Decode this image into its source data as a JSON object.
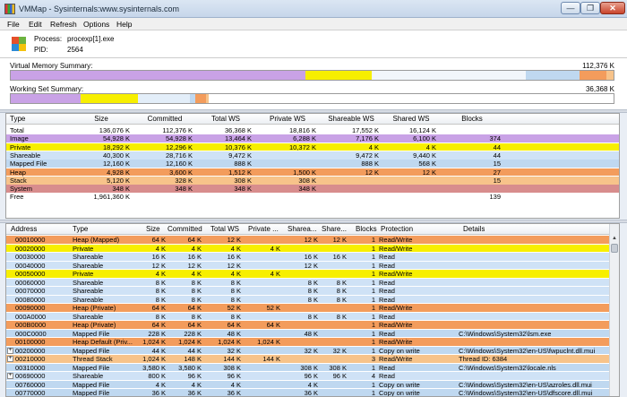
{
  "window": {
    "title": "VMMap - Sysinternals:www.sysinternals.com",
    "min": "—",
    "max": "❐",
    "close": "✕"
  },
  "menu": [
    "File",
    "Edit",
    "Refresh",
    "Options",
    "Help"
  ],
  "process": {
    "process_label": "Process:",
    "process_value": "procexp[1].exe",
    "pid_label": "PID:",
    "pid_value": "2564"
  },
  "summary": {
    "virtual_label": "Virtual Memory Summary:",
    "virtual_value": "112,376 K",
    "working_label": "Working Set Summary:",
    "working_value": "36,368 K"
  },
  "colors": {
    "image": "#c9a2e6",
    "private": "#f7ef00",
    "shareable": "#cfe2f6",
    "mapped": "#bfd8f0",
    "heap": "#f39c5c",
    "stack": "#f7c38a",
    "system": "#d88d8d",
    "free": "#ffffff"
  },
  "type_table": {
    "headers": [
      "Type",
      "Size",
      "Committed",
      "Total WS",
      "Private WS",
      "Shareable WS",
      "Shared WS",
      "Blocks"
    ],
    "rows": [
      {
        "type": "Total",
        "c": [
          "136,076 K",
          "112,376 K",
          "36,368 K",
          "18,816 K",
          "17,552 K",
          "16,124 K",
          ""
        ],
        "color": "#ffffff"
      },
      {
        "type": "Image",
        "c": [
          "54,928 K",
          "54,928 K",
          "13,464 K",
          "6,288 K",
          "7,176 K",
          "6,100 K",
          "374"
        ],
        "color": "#c9a2e6"
      },
      {
        "type": "Private",
        "c": [
          "18,292 K",
          "12,296 K",
          "10,376 K",
          "10,372 K",
          "4 K",
          "4 K",
          "44"
        ],
        "color": "#f7ef00"
      },
      {
        "type": "Shareable",
        "c": [
          "40,300 K",
          "28,716 K",
          "9,472 K",
          "",
          "9,472 K",
          "9,440 K",
          "44"
        ],
        "color": "#cfe2f6"
      },
      {
        "type": "Mapped File",
        "c": [
          "12,160 K",
          "12,160 K",
          "888 K",
          "",
          "888 K",
          "568 K",
          "15"
        ],
        "color": "#bfd8f0"
      },
      {
        "type": "Heap",
        "c": [
          "4,928 K",
          "3,600 K",
          "1,512 K",
          "1,500 K",
          "12 K",
          "12 K",
          "27"
        ],
        "color": "#f39c5c"
      },
      {
        "type": "Stack",
        "c": [
          "5,120 K",
          "328 K",
          "308 K",
          "308 K",
          "",
          "",
          "15"
        ],
        "color": "#f7c38a"
      },
      {
        "type": "System",
        "c": [
          "348 K",
          "348 K",
          "348 K",
          "348 K",
          "",
          "",
          ""
        ],
        "color": "#d88d8d"
      },
      {
        "type": "Free",
        "c": [
          "1,961,360 K",
          "",
          "",
          "",
          "",
          "",
          "139"
        ],
        "color": "#ffffff"
      }
    ]
  },
  "detail_table": {
    "headers": [
      "Address",
      "Type",
      "Size",
      "Committed",
      "Total WS",
      "Private ...",
      "Sharea...",
      "Share...",
      "Blocks",
      "Protection",
      "Details"
    ],
    "rows": [
      {
        "e": "",
        "a": "00010000",
        "t": "Heap (Mapped)",
        "s": "64 K",
        "c": "64 K",
        "tw": "12 K",
        "pw": "",
        "sw": "12 K",
        "sh": "12 K",
        "b": "1",
        "p": "Read/Write",
        "d": "",
        "color": "#f39c5c"
      },
      {
        "e": "",
        "a": "00020000",
        "t": "Private",
        "s": "4 K",
        "c": "4 K",
        "tw": "4 K",
        "pw": "4 K",
        "sw": "",
        "sh": "",
        "b": "1",
        "p": "Read/Write",
        "d": "",
        "color": "#f7ef00"
      },
      {
        "e": "",
        "a": "00030000",
        "t": "Shareable",
        "s": "16 K",
        "c": "16 K",
        "tw": "16 K",
        "pw": "",
        "sw": "16 K",
        "sh": "16 K",
        "b": "1",
        "p": "Read",
        "d": "",
        "color": "#cfe2f6"
      },
      {
        "e": "",
        "a": "00040000",
        "t": "Shareable",
        "s": "12 K",
        "c": "12 K",
        "tw": "12 K",
        "pw": "",
        "sw": "12 K",
        "sh": "",
        "b": "1",
        "p": "Read",
        "d": "",
        "color": "#cfe2f6"
      },
      {
        "e": "",
        "a": "00050000",
        "t": "Private",
        "s": "4 K",
        "c": "4 K",
        "tw": "4 K",
        "pw": "4 K",
        "sw": "",
        "sh": "",
        "b": "1",
        "p": "Read/Write",
        "d": "",
        "color": "#f7ef00"
      },
      {
        "e": "",
        "a": "00060000",
        "t": "Shareable",
        "s": "8 K",
        "c": "8 K",
        "tw": "8 K",
        "pw": "",
        "sw": "8 K",
        "sh": "8 K",
        "b": "1",
        "p": "Read",
        "d": "",
        "color": "#cfe2f6"
      },
      {
        "e": "",
        "a": "00070000",
        "t": "Shareable",
        "s": "8 K",
        "c": "8 K",
        "tw": "8 K",
        "pw": "",
        "sw": "8 K",
        "sh": "8 K",
        "b": "1",
        "p": "Read",
        "d": "",
        "color": "#cfe2f6"
      },
      {
        "e": "",
        "a": "00080000",
        "t": "Shareable",
        "s": "8 K",
        "c": "8 K",
        "tw": "8 K",
        "pw": "",
        "sw": "8 K",
        "sh": "8 K",
        "b": "1",
        "p": "Read",
        "d": "",
        "color": "#cfe2f6"
      },
      {
        "e": "",
        "a": "00090000",
        "t": "Heap (Private)",
        "s": "64 K",
        "c": "64 K",
        "tw": "52 K",
        "pw": "52 K",
        "sw": "",
        "sh": "",
        "b": "1",
        "p": "Read/Write",
        "d": "",
        "color": "#f39c5c"
      },
      {
        "e": "",
        "a": "000A0000",
        "t": "Shareable",
        "s": "8 K",
        "c": "8 K",
        "tw": "8 K",
        "pw": "",
        "sw": "8 K",
        "sh": "8 K",
        "b": "1",
        "p": "Read",
        "d": "",
        "color": "#cfe2f6"
      },
      {
        "e": "",
        "a": "000B0000",
        "t": "Heap (Private)",
        "s": "64 K",
        "c": "64 K",
        "tw": "64 K",
        "pw": "64 K",
        "sw": "",
        "sh": "",
        "b": "1",
        "p": "Read/Write",
        "d": "",
        "color": "#f39c5c"
      },
      {
        "e": "",
        "a": "000C0000",
        "t": "Mapped File",
        "s": "228 K",
        "c": "228 K",
        "tw": "48 K",
        "pw": "",
        "sw": "48 K",
        "sh": "",
        "b": "1",
        "p": "Read",
        "d": "C:\\Windows\\System32\\lsm.exe",
        "color": "#bfd8f0"
      },
      {
        "e": "",
        "a": "00100000",
        "t": "Heap Default (Priv...",
        "s": "1,024 K",
        "c": "1,024 K",
        "tw": "1,024 K",
        "pw": "1,024 K",
        "sw": "",
        "sh": "",
        "b": "1",
        "p": "Read/Write",
        "d": "",
        "color": "#f39c5c"
      },
      {
        "e": "+",
        "a": "00200000",
        "t": "Mapped File",
        "s": "44 K",
        "c": "44 K",
        "tw": "32 K",
        "pw": "",
        "sw": "32 K",
        "sh": "32 K",
        "b": "1",
        "p": "Copy on write",
        "d": "C:\\Windows\\System32\\en-US\\fwpuclnt.dll.mui",
        "color": "#bfd8f0"
      },
      {
        "e": "+",
        "a": "00210000",
        "t": "Thread Stack",
        "s": "1,024 K",
        "c": "148 K",
        "tw": "144 K",
        "pw": "144 K",
        "sw": "",
        "sh": "",
        "b": "3",
        "p": "Read/Write",
        "d": "Thread ID: 6384",
        "color": "#f7c38a"
      },
      {
        "e": "",
        "a": "00310000",
        "t": "Mapped File",
        "s": "3,580 K",
        "c": "3,580 K",
        "tw": "308 K",
        "pw": "",
        "sw": "308 K",
        "sh": "308 K",
        "b": "1",
        "p": "Read",
        "d": "C:\\Windows\\System32\\locale.nls",
        "color": "#bfd8f0"
      },
      {
        "e": "+",
        "a": "00690000",
        "t": "Shareable",
        "s": "800 K",
        "c": "96 K",
        "tw": "96 K",
        "pw": "",
        "sw": "96 K",
        "sh": "96 K",
        "b": "4",
        "p": "Read",
        "d": "",
        "color": "#cfe2f6"
      },
      {
        "e": "",
        "a": "00760000",
        "t": "Mapped File",
        "s": "4 K",
        "c": "4 K",
        "tw": "4 K",
        "pw": "",
        "sw": "4 K",
        "sh": "",
        "b": "1",
        "p": "Copy on write",
        "d": "C:\\Windows\\System32\\en-US\\azroles.dll.mui",
        "color": "#bfd8f0"
      },
      {
        "e": "",
        "a": "00770000",
        "t": "Mapped File",
        "s": "36 K",
        "c": "36 K",
        "tw": "36 K",
        "pw": "",
        "sw": "36 K",
        "sh": "",
        "b": "1",
        "p": "Copy on write",
        "d": "C:\\Windows\\System32\\en-US\\dfscore.dll.mui",
        "color": "#bfd8f0"
      }
    ]
  },
  "icons": {
    "sort": "sort-arrow-icon",
    "expand": "expand-plus-icon"
  }
}
